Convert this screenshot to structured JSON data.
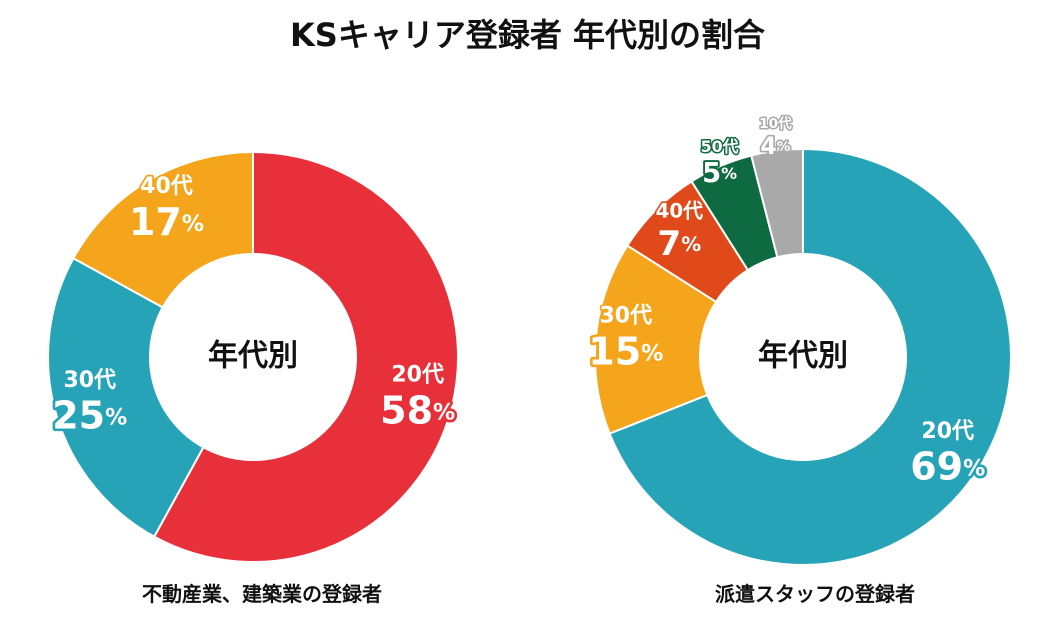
{
  "title": "KSキャリア登録者 年代別の割合",
  "chart_data": [
    {
      "type": "pie",
      "donut": true,
      "center_label": "年代別",
      "caption": "不動産業、建築業の登録者",
      "slices": [
        {
          "label": "20代",
          "value": 58,
          "display": "58",
          "color": "#e8303a"
        },
        {
          "label": "30代",
          "value": 25,
          "display": "25",
          "color": "#27a3b7"
        },
        {
          "label": "40代",
          "value": 17,
          "display": "17",
          "color": "#f4a51c"
        }
      ]
    },
    {
      "type": "pie",
      "donut": true,
      "center_label": "年代別",
      "caption": "派遣スタッフの登録者",
      "slices": [
        {
          "label": "20代",
          "value": 69,
          "display": "69",
          "color": "#27a3b7"
        },
        {
          "label": "30代",
          "value": 15,
          "display": "15",
          "color": "#f4a51c"
        },
        {
          "label": "40代",
          "value": 7,
          "display": "7",
          "color": "#e04a1a"
        },
        {
          "label": "50代",
          "value": 5,
          "display": "5",
          "color": "#0e6a40"
        },
        {
          "label": "10代",
          "value": 4,
          "display": "4",
          "color": "#a9a9a9"
        }
      ]
    }
  ]
}
